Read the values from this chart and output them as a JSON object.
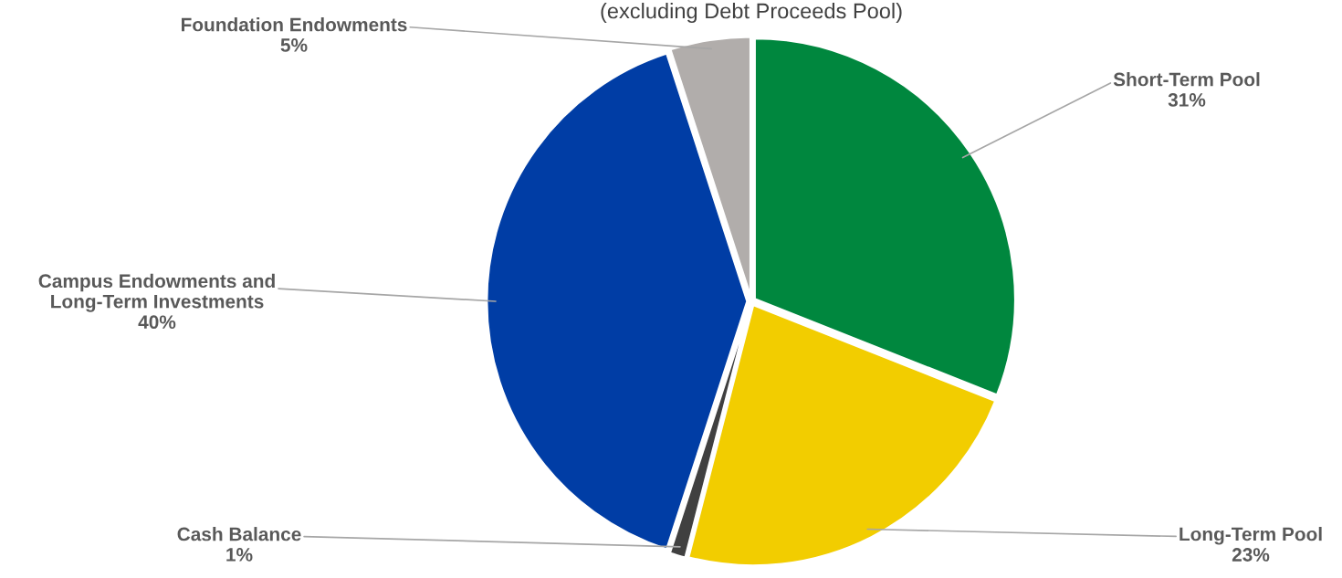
{
  "chart_data": {
    "type": "pie",
    "subtitle": "(excluding Debt Proceeds Pool)",
    "categories": [
      "Short-Term Pool",
      "Long-Term Pool",
      "Cash Balance",
      "Campus Endowments and\nLong-Term Investments",
      "Foundation Endowments"
    ],
    "values": [
      31,
      23,
      1,
      40,
      5
    ],
    "value_labels": [
      "31%",
      "23%",
      "1%",
      "40%",
      "5%"
    ],
    "colors": [
      "#00873e",
      "#f2cd00",
      "#404040",
      "#003da5",
      "#b1adab"
    ],
    "legend": false
  }
}
